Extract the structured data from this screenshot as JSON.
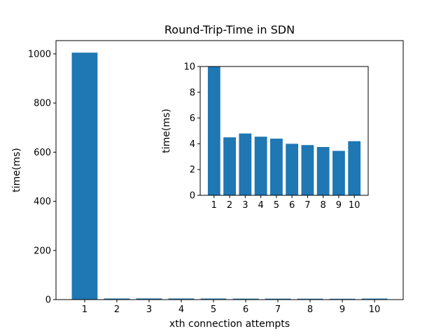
{
  "chart_data": [
    {
      "type": "bar",
      "title": "Round-Trip-Time in SDN",
      "xlabel": "xth connection attempts",
      "ylabel": "time(ms)",
      "categories": [
        "1",
        "2",
        "3",
        "4",
        "5",
        "6",
        "7",
        "8",
        "9",
        "10"
      ],
      "values": [
        1005,
        4.5,
        4.8,
        4.55,
        4.4,
        4.0,
        3.9,
        3.75,
        3.45,
        4.2
      ],
      "ylim": [
        0,
        1054
      ],
      "yticks": [
        0,
        200,
        400,
        600,
        800,
        1000
      ],
      "bar_color": "#1f77b4",
      "grid": false,
      "legend": "none"
    },
    {
      "type": "bar",
      "title": "",
      "xlabel": "",
      "ylabel": "time(ms)",
      "categories": [
        "1",
        "2",
        "3",
        "4",
        "5",
        "6",
        "7",
        "8",
        "9",
        "10"
      ],
      "values": [
        10,
        4.5,
        4.8,
        4.55,
        4.4,
        4.0,
        3.9,
        3.75,
        3.45,
        4.2
      ],
      "ylim": [
        0,
        10
      ],
      "yticks": [
        0,
        2,
        4,
        6,
        8,
        10
      ],
      "bar_color": "#1f77b4",
      "grid": false,
      "legend": "none",
      "placement": "inset"
    }
  ]
}
